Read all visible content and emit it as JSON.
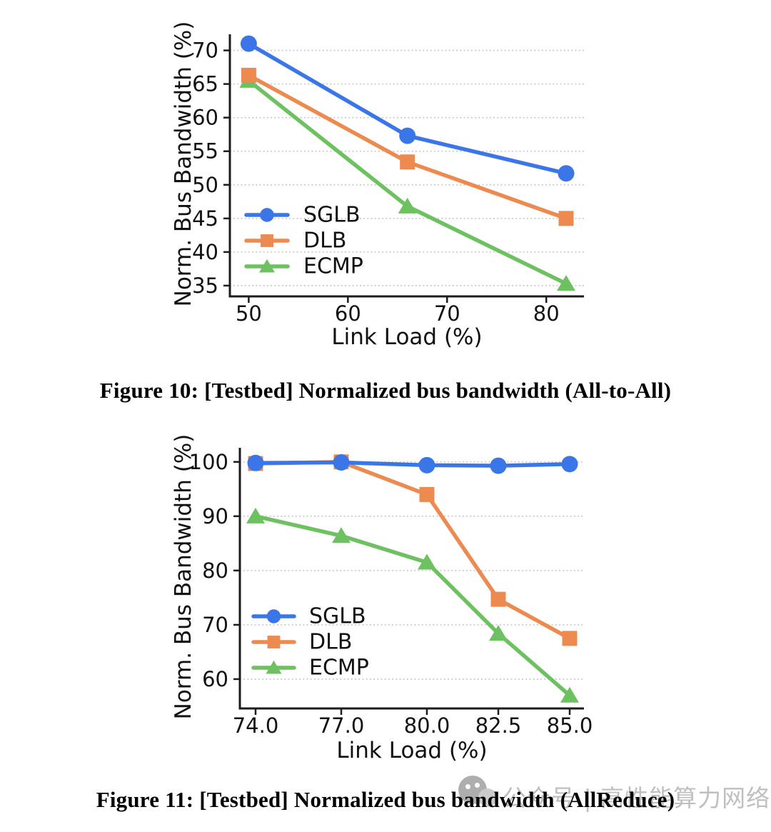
{
  "page": {
    "background": "#ffffff"
  },
  "figures": [
    {
      "caption": "Figure 10: [Testbed] Normalized bus bandwidth (All-to-All)"
    },
    {
      "caption": "Figure 11: [Testbed] Normalized bus bandwidth (AllReduce)"
    }
  ],
  "watermark": {
    "text": "公众号 | 高性能算力网络",
    "icon": "wechat-official-account-logo",
    "color": "#b5b5b5"
  },
  "colors": {
    "sglb_blue": "#3b76e8",
    "dlb_orange": "#ec8a50",
    "ecmp_green": "#6ec161",
    "spine": "#1c1c1c",
    "grid": "#c8c8c8",
    "text": "#111111"
  },
  "chart_data": [
    {
      "type": "line",
      "title": "",
      "xlabel": "Link Load (%)",
      "ylabel": "Norm. Bus Bandwidth (%)",
      "x": [
        50,
        66,
        82
      ],
      "xticks": [
        50,
        60,
        70,
        80
      ],
      "xtick_labels": [
        "50",
        "60",
        "70",
        "80"
      ],
      "xlim": [
        48.1,
        83.8
      ],
      "yticks": [
        35,
        40,
        45,
        50,
        55,
        60,
        65,
        70
      ],
      "ytick_labels": [
        "35",
        "40",
        "45",
        "50",
        "55",
        "60",
        "65",
        "70"
      ],
      "ylim": [
        33.4,
        72.4
      ],
      "grid": "horizontal-dotted",
      "legend_position": "lower-left-no-frame",
      "series": [
        {
          "name": "SGLB",
          "marker": "circle",
          "color": "#3b76e8",
          "values": [
            71.0,
            57.3,
            51.7
          ]
        },
        {
          "name": "DLB",
          "marker": "square",
          "color": "#ec8a50",
          "values": [
            66.3,
            53.4,
            45.0
          ]
        },
        {
          "name": "ECMP",
          "marker": "triangle",
          "color": "#6ec161",
          "values": [
            65.5,
            46.8,
            35.3
          ]
        }
      ]
    },
    {
      "type": "line",
      "title": "",
      "xlabel": "Link Load (%)",
      "ylabel": "Norm. Bus Bandwidth (%)",
      "x": [
        74,
        77,
        80,
        82.5,
        85
      ],
      "xticks": [
        74,
        77,
        80,
        82.5,
        85
      ],
      "xtick_labels": [
        "74.0",
        "77.0",
        "80.0",
        "82.5",
        "85.0"
      ],
      "xlim": [
        73.45,
        85.5
      ],
      "yticks": [
        60,
        70,
        80,
        90,
        100
      ],
      "ytick_labels": [
        "60",
        "70",
        "80",
        "90",
        "100"
      ],
      "ylim": [
        54.6,
        102.6
      ],
      "grid": "horizontal-dotted",
      "legend_position": "lower-left-no-frame",
      "series": [
        {
          "name": "SGLB",
          "marker": "circle",
          "color": "#3b76e8",
          "values": [
            99.8,
            99.9,
            99.4,
            99.3,
            99.6
          ]
        },
        {
          "name": "DLB",
          "marker": "square",
          "color": "#ec8a50",
          "values": [
            99.7,
            100.0,
            94.0,
            74.7,
            67.5
          ]
        },
        {
          "name": "ECMP",
          "marker": "triangle",
          "color": "#6ec161",
          "values": [
            90.0,
            86.4,
            81.5,
            68.4,
            57.0
          ]
        }
      ]
    }
  ]
}
